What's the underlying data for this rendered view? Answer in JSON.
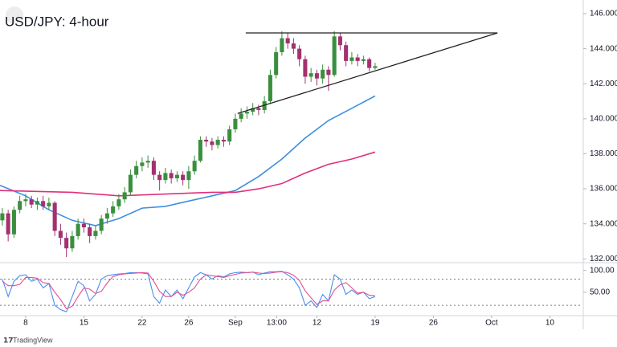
{
  "chart_data": {
    "type": "candlestick",
    "title": "USD/JPY: 4-hour",
    "footer": "TradingView",
    "up_color": "#3a8f3e",
    "down_color": "#a3316f",
    "x": [
      -2,
      -1.5,
      -1,
      -0.5,
      0,
      0.5,
      1,
      1.5,
      2,
      2.5,
      3,
      3.5,
      4,
      4.5,
      5,
      5.5,
      6,
      6.5,
      7,
      7.5,
      8,
      8.5,
      9,
      9.5,
      10,
      10.5,
      11,
      11.5,
      12,
      12.5,
      13,
      13.5,
      14,
      14.5,
      15,
      15.5,
      16,
      16.5,
      17,
      17.5,
      18,
      18.5,
      19,
      19.5,
      20,
      20.5,
      21,
      21.5,
      22,
      22.5,
      23,
      23.5,
      24,
      24.5,
      25,
      25.5,
      26,
      26.5,
      27,
      27.5,
      28,
      28.5,
      29,
      29.5,
      30
    ],
    "open": [
      134.2,
      134.6,
      133.4,
      134.8,
      135.3,
      135.4,
      135.1,
      135.3,
      135.0,
      135.2,
      133.6,
      133.2,
      132.6,
      133.3,
      134.0,
      133.8,
      133.3,
      133.6,
      134.3,
      134.6,
      135.0,
      135.4,
      135.8,
      136.8,
      137.3,
      137.5,
      137.6,
      136.8,
      136.5,
      136.9,
      136.6,
      136.8,
      136.5,
      137.0,
      137.6,
      138.8,
      138.7,
      138.5,
      138.8,
      138.7,
      139.4,
      140.0,
      140.3,
      140.4,
      140.6,
      140.5,
      141.0,
      142.5,
      143.8,
      144.6,
      144.3,
      144.0,
      143.4,
      142.4,
      142.6,
      142.3,
      142.8,
      142.5,
      144.7,
      144.2,
      143.3,
      143.5,
      143.3,
      143.4,
      142.9
    ],
    "high": [
      134.9,
      134.8,
      135.0,
      135.6,
      135.7,
      135.6,
      135.5,
      135.6,
      135.5,
      135.3,
      134.0,
      133.5,
      133.6,
      134.3,
      134.3,
      134.0,
      133.9,
      134.5,
      134.9,
      135.3,
      135.7,
      136.1,
      137.1,
      137.6,
      137.8,
      137.9,
      137.8,
      137.0,
      137.2,
      137.1,
      137.0,
      137.0,
      137.3,
      137.9,
      139.0,
      139.0,
      138.9,
      139.0,
      139.0,
      139.6,
      140.3,
      140.6,
      140.7,
      140.9,
      140.8,
      141.3,
      142.8,
      144.1,
      145.0,
      144.9,
      144.6,
      144.2,
      143.6,
      142.9,
      142.8,
      143.1,
      143.0,
      145.0,
      144.9,
      144.4,
      143.8,
      143.7,
      143.6,
      143.5,
      143.2
    ],
    "low": [
      133.9,
      133.0,
      133.2,
      134.6,
      135.0,
      134.9,
      134.8,
      134.8,
      134.8,
      133.3,
      132.8,
      132.1,
      132.4,
      133.1,
      133.5,
      132.9,
      133.1,
      133.4,
      134.0,
      134.4,
      134.8,
      135.2,
      135.6,
      136.6,
      137.0,
      137.2,
      136.5,
      135.9,
      136.3,
      136.3,
      136.4,
      136.2,
      136.0,
      136.8,
      137.5,
      138.4,
      138.2,
      138.3,
      138.4,
      138.5,
      139.2,
      139.8,
      140.0,
      140.2,
      140.2,
      140.3,
      140.9,
      142.3,
      143.6,
      144.0,
      143.7,
      143.0,
      142.0,
      142.1,
      141.9,
      142.0,
      141.6,
      142.4,
      143.9,
      143.0,
      143.1,
      143.0,
      143.1,
      142.7,
      142.8
    ],
    "close": [
      134.6,
      133.4,
      134.8,
      135.3,
      135.4,
      135.1,
      135.3,
      135.0,
      135.2,
      133.6,
      133.2,
      132.6,
      133.3,
      134.0,
      133.8,
      133.3,
      133.6,
      134.3,
      134.6,
      135.0,
      135.4,
      135.8,
      136.8,
      137.3,
      137.5,
      137.6,
      136.8,
      136.5,
      136.9,
      136.6,
      136.8,
      136.5,
      137.0,
      137.6,
      138.8,
      138.7,
      138.5,
      138.8,
      138.7,
      139.4,
      140.0,
      140.3,
      140.4,
      140.6,
      140.5,
      141.0,
      142.5,
      143.8,
      144.6,
      144.3,
      144.0,
      143.4,
      142.4,
      142.6,
      142.3,
      142.8,
      142.5,
      144.7,
      144.2,
      143.3,
      143.5,
      143.3,
      143.4,
      142.9,
      143.0
    ],
    "lines": [
      {
        "color": "#3d8fe0",
        "x": [
          -2.2,
          0,
          2,
          4,
          6,
          8,
          10,
          12,
          14,
          16,
          18,
          20,
          22,
          24,
          26,
          28,
          30
        ],
        "values": [
          136.2,
          135.6,
          134.8,
          134.2,
          133.9,
          134.3,
          134.9,
          135.0,
          135.3,
          135.6,
          135.9,
          136.7,
          137.7,
          138.9,
          139.9,
          140.6,
          141.3
        ]
      },
      {
        "color": "#e0307a",
        "x": [
          -2.2,
          4,
          8,
          12,
          16,
          18,
          20,
          22,
          24,
          26,
          28,
          30
        ],
        "values": [
          135.9,
          135.8,
          135.6,
          135.7,
          135.8,
          135.8,
          136.0,
          136.3,
          136.9,
          137.4,
          137.7,
          138.1
        ]
      }
    ],
    "trendlines": [
      {
        "color": "#222222",
        "x": [
          18.9,
          40.5
        ],
        "values": [
          144.9,
          144.9
        ]
      },
      {
        "color": "#222222",
        "x": [
          18.2,
          40.5
        ],
        "values": [
          140.3,
          144.9
        ]
      }
    ],
    "xlim": [
      -2.2,
      47.8
    ],
    "ylim": [
      131.83,
      146.78
    ],
    "xticks": [
      {
        "value": 0,
        "label": "8"
      },
      {
        "value": 5,
        "label": "15"
      },
      {
        "value": 10,
        "label": "22"
      },
      {
        "value": 14,
        "label": "26"
      },
      {
        "value": 18,
        "label": "Sep"
      },
      {
        "value": 21.55,
        "label": "13:00"
      },
      {
        "value": 25,
        "label": "12"
      },
      {
        "value": 30,
        "label": "19"
      },
      {
        "value": 35,
        "label": "26"
      },
      {
        "value": 40,
        "label": "Oct"
      },
      {
        "value": 45,
        "label": "10"
      }
    ],
    "yticks": [
      {
        "value": 132,
        "label": "132.000"
      },
      {
        "value": 134,
        "label": "134.000"
      },
      {
        "value": 136,
        "label": "136.000"
      },
      {
        "value": 138,
        "label": "138.000"
      },
      {
        "value": 140,
        "label": "140.000"
      },
      {
        "value": 142,
        "label": "142.000"
      },
      {
        "value": 144,
        "label": "144.000"
      },
      {
        "value": 146,
        "label": "146.000"
      }
    ],
    "oscillator": {
      "ylim": [
        -2,
        116
      ],
      "yticks": [
        {
          "value": 50,
          "label": "50.00"
        },
        {
          "value": 100,
          "label": "100.00"
        }
      ],
      "levels": [
        80,
        20
      ],
      "series": [
        {
          "color": "#4a8ff0",
          "values": [
            80,
            40,
            75,
            88,
            90,
            75,
            80,
            60,
            70,
            20,
            10,
            5,
            40,
            75,
            65,
            30,
            45,
            80,
            88,
            90,
            92,
            93,
            95,
            95,
            94,
            92,
            40,
            25,
            55,
            40,
            55,
            35,
            60,
            85,
            95,
            90,
            80,
            88,
            85,
            92,
            95,
            96,
            95,
            96,
            90,
            94,
            97,
            97,
            98,
            90,
            80,
            60,
            20,
            30,
            15,
            45,
            30,
            90,
            80,
            45,
            55,
            45,
            50,
            35,
            40
          ]
        },
        {
          "color": "#e0508f",
          "values": [
            75,
            65,
            65,
            68,
            84,
            84,
            82,
            72,
            70,
            50,
            33,
            12,
            18,
            40,
            60,
            57,
            47,
            52,
            71,
            86,
            90,
            92,
            93,
            94,
            95,
            94,
            75,
            52,
            40,
            40,
            50,
            43,
            50,
            60,
            80,
            90,
            88,
            86,
            84,
            88,
            91,
            94,
            95,
            96,
            94,
            93,
            94,
            96,
            97,
            95,
            89,
            77,
            53,
            37,
            22,
            30,
            30,
            55,
            67,
            72,
            60,
            48,
            50,
            43,
            42
          ]
        }
      ]
    }
  }
}
